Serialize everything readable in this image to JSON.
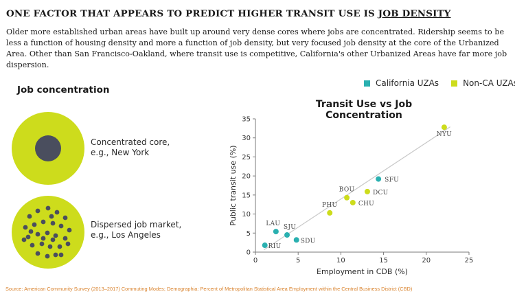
{
  "header": {
    "headline_prefix": "ONE FACTOR THAT APPEARS TO PREDICT HIGHER TRANSIT USE IS ",
    "headline_emphasis": "JOB DENSITY",
    "lede": "Older more established urban areas have built up around very dense cores where jobs are concentrated. Ridership seems to be less a function of housing density and more a function of job density, but very focused job density at the core of the Urbanized Area. Other than San Francisco-Oakland, where transit use is competitive, California's other Urbanized Areas have far more job dispersion."
  },
  "concept": {
    "title": "Job concentration",
    "concentrated": {
      "line1": "Concentrated core,",
      "line2": "e.g., New York"
    },
    "dispersed": {
      "line1": "Dispersed job market,",
      "line2": "e.g., Los Angeles"
    }
  },
  "colors": {
    "california": "#2ab0b0",
    "non_ca": "#cddc1c",
    "dark_dot": "#4a4e5e",
    "trend": "#c8c8c8"
  },
  "chart_data": {
    "type": "scatter",
    "title": "Transit Use vs Job Concentration",
    "xlabel": "Employment in CDB (%)",
    "ylabel": "Public transit use (%)",
    "xlim": [
      0,
      25
    ],
    "ylim": [
      0,
      35
    ],
    "xticks": [
      "0",
      "5",
      "10",
      "15",
      "20",
      "25"
    ],
    "yticks": [
      "0",
      "5",
      "10",
      "15",
      "20",
      "25",
      "30",
      "35"
    ],
    "grid": false,
    "legend_position": "top-right",
    "series": [
      {
        "name": "California UZAs",
        "color": "#2ab0b0",
        "points": [
          {
            "label": "RIU",
            "x": 1.1,
            "y": 1.8
          },
          {
            "label": "LAU",
            "x": 2.4,
            "y": 5.4
          },
          {
            "label": "SJU",
            "x": 3.7,
            "y": 4.5
          },
          {
            "label": "SDU",
            "x": 4.8,
            "y": 3.2
          },
          {
            "label": "SFU",
            "x": 14.4,
            "y": 19.2
          }
        ]
      },
      {
        "name": "Non-CA UZAs",
        "color": "#cddc1c",
        "points": [
          {
            "label": "PHU",
            "x": 8.7,
            "y": 10.3
          },
          {
            "label": "BOU",
            "x": 10.7,
            "y": 14.3
          },
          {
            "label": "CHU",
            "x": 11.4,
            "y": 13.0
          },
          {
            "label": "DCU",
            "x": 13.1,
            "y": 15.9
          },
          {
            "label": "NYU",
            "x": 22.1,
            "y": 32.8
          }
        ]
      }
    ],
    "trendline": {
      "x": [
        1.0,
        22.8
      ],
      "y": [
        0.6,
        32.9
      ]
    }
  },
  "footer": {
    "source": "Source: American Community Survey (2013–2017) Commuting Modes; Demographia: Percent of Metropolitan Statistical Area Employment within the Central Business District (CBD)"
  }
}
